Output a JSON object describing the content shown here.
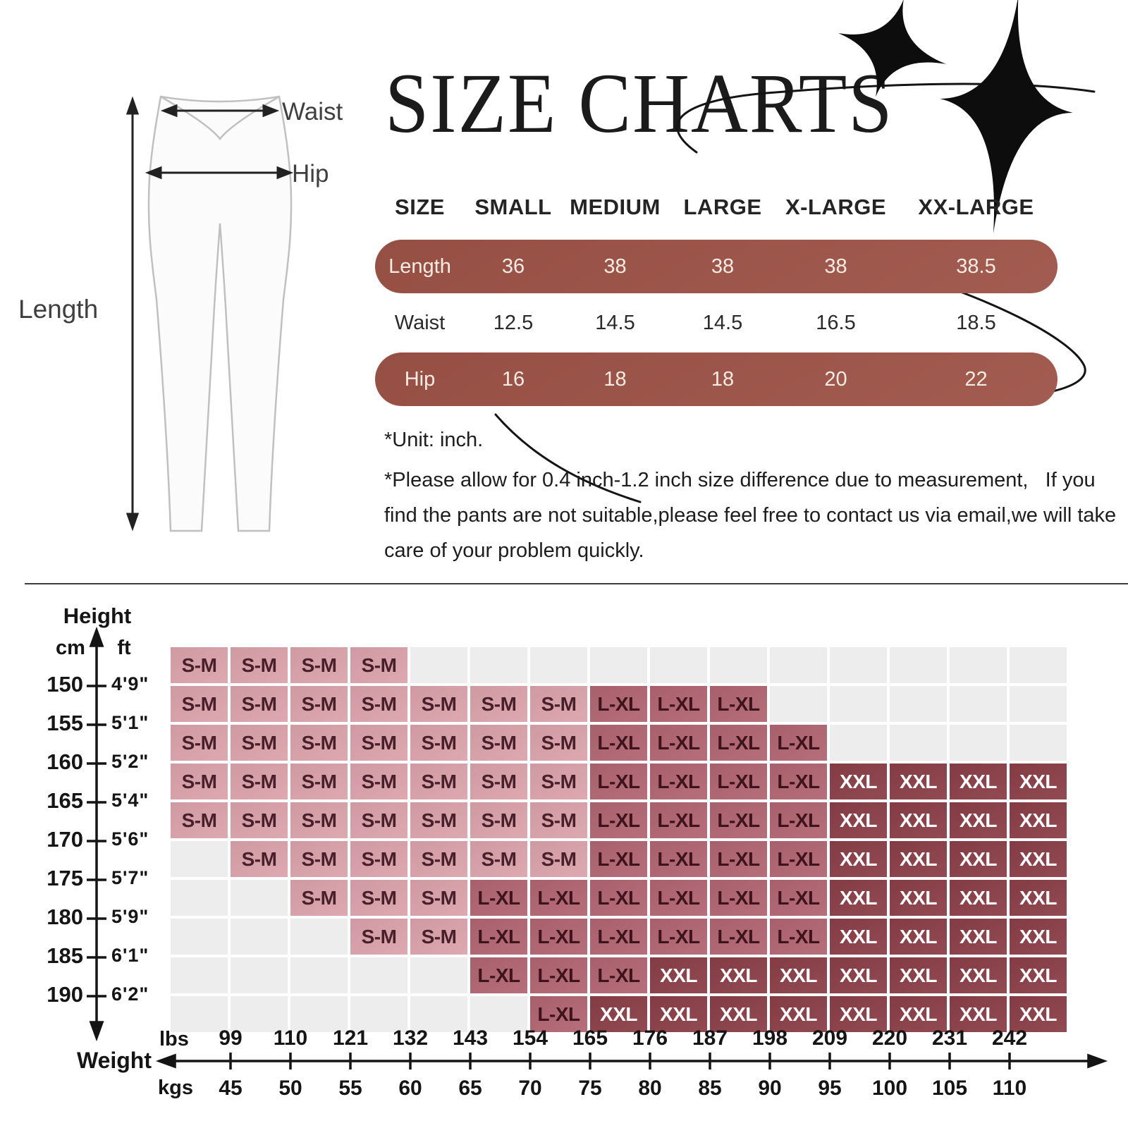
{
  "title": "SIZE CHARTS",
  "diagram": {
    "waist_label": "Waist",
    "hip_label": "Hip",
    "length_label": "Length"
  },
  "size_table": {
    "columns": [
      "SIZE",
      "SMALL",
      "MEDIUM",
      "LARGE",
      "X-LARGE",
      "XX-LARGE"
    ],
    "rows": [
      {
        "label": "Length",
        "values": [
          "36",
          "38",
          "38",
          "38",
          "38.5"
        ],
        "highlight": true
      },
      {
        "label": "Waist",
        "values": [
          "12.5",
          "14.5",
          "14.5",
          "16.5",
          "18.5"
        ],
        "highlight": false
      },
      {
        "label": "Hip",
        "values": [
          "16",
          "18",
          "18",
          "20",
          "22"
        ],
        "highlight": true
      }
    ],
    "unit_note": "*Unit: inch.",
    "note": "*Please allow for 0.4 inch-1.2 inch size difference due to measurement,   If you find the pants are not suitable,please feel free to contact us via email,we will take care of your problem quickly."
  },
  "chart_data": {
    "type": "heatmap",
    "y_axis": {
      "label": "Height",
      "left_unit": "cm",
      "right_unit": "ft",
      "cm": [
        150,
        155,
        160,
        165,
        170,
        175,
        180,
        185,
        190
      ],
      "ft": [
        "4'9\"",
        "5'1\"",
        "5'2\"",
        "5'4\"",
        "5'6\"",
        "5'7\"",
        "5'9\"",
        "6'1\"",
        "6'2\""
      ]
    },
    "x_axis": {
      "label": "Weight",
      "top_unit": "lbs",
      "bottom_unit": "kgs",
      "lbs": [
        99,
        110,
        121,
        132,
        143,
        154,
        165,
        176,
        187,
        198,
        209,
        220,
        231,
        242
      ],
      "kgs": [
        45,
        50,
        55,
        60,
        65,
        70,
        75,
        80,
        85,
        90,
        95,
        100,
        105,
        110
      ]
    },
    "cell_codes": {
      "SM": "S-M",
      "LXL": "L-XL",
      "XXL": "XXL"
    },
    "grid": [
      [
        "SM",
        "SM",
        "SM",
        "SM",
        "",
        "",
        "",
        "",
        "",
        "",
        "",
        "",
        "",
        "",
        ""
      ],
      [
        "SM",
        "SM",
        "SM",
        "SM",
        "SM",
        "SM",
        "SM",
        "LXL",
        "LXL",
        "LXL",
        "",
        "",
        "",
        "",
        ""
      ],
      [
        "SM",
        "SM",
        "SM",
        "SM",
        "SM",
        "SM",
        "SM",
        "LXL",
        "LXL",
        "LXL",
        "LXL",
        "",
        "",
        "",
        ""
      ],
      [
        "SM",
        "SM",
        "SM",
        "SM",
        "SM",
        "SM",
        "SM",
        "LXL",
        "LXL",
        "LXL",
        "LXL",
        "XXL",
        "XXL",
        "XXL",
        "XXL"
      ],
      [
        "SM",
        "SM",
        "SM",
        "SM",
        "SM",
        "SM",
        "SM",
        "LXL",
        "LXL",
        "LXL",
        "LXL",
        "XXL",
        "XXL",
        "XXL",
        "XXL"
      ],
      [
        "",
        "SM",
        "SM",
        "SM",
        "SM",
        "SM",
        "SM",
        "LXL",
        "LXL",
        "LXL",
        "LXL",
        "XXL",
        "XXL",
        "XXL",
        "XXL"
      ],
      [
        "",
        "",
        "SM",
        "SM",
        "SM",
        "LXL",
        "LXL",
        "LXL",
        "LXL",
        "LXL",
        "LXL",
        "XXL",
        "XXL",
        "XXL",
        "XXL"
      ],
      [
        "",
        "",
        "",
        "SM",
        "SM",
        "LXL",
        "LXL",
        "LXL",
        "LXL",
        "LXL",
        "LXL",
        "XXL",
        "XXL",
        "XXL",
        "XXL"
      ],
      [
        "",
        "",
        "",
        "",
        "",
        "LXL",
        "LXL",
        "LXL",
        "XXL",
        "XXL",
        "XXL",
        "XXL",
        "XXL",
        "XXL",
        "XXL"
      ],
      [
        "",
        "",
        "",
        "",
        "",
        "",
        "LXL",
        "XXL",
        "XXL",
        "XXL",
        "XXL",
        "XXL",
        "XXL",
        "XXL",
        "XXL"
      ]
    ]
  },
  "colors": {
    "accent": "#9e5347",
    "pill_text": "#f6ece4",
    "cell_sm": "#dca3ab",
    "cell_lxl": "#b26672",
    "cell_xxl": "#8c3f48",
    "cell_empty": "#ededed",
    "ink": "#1a1a1a"
  }
}
